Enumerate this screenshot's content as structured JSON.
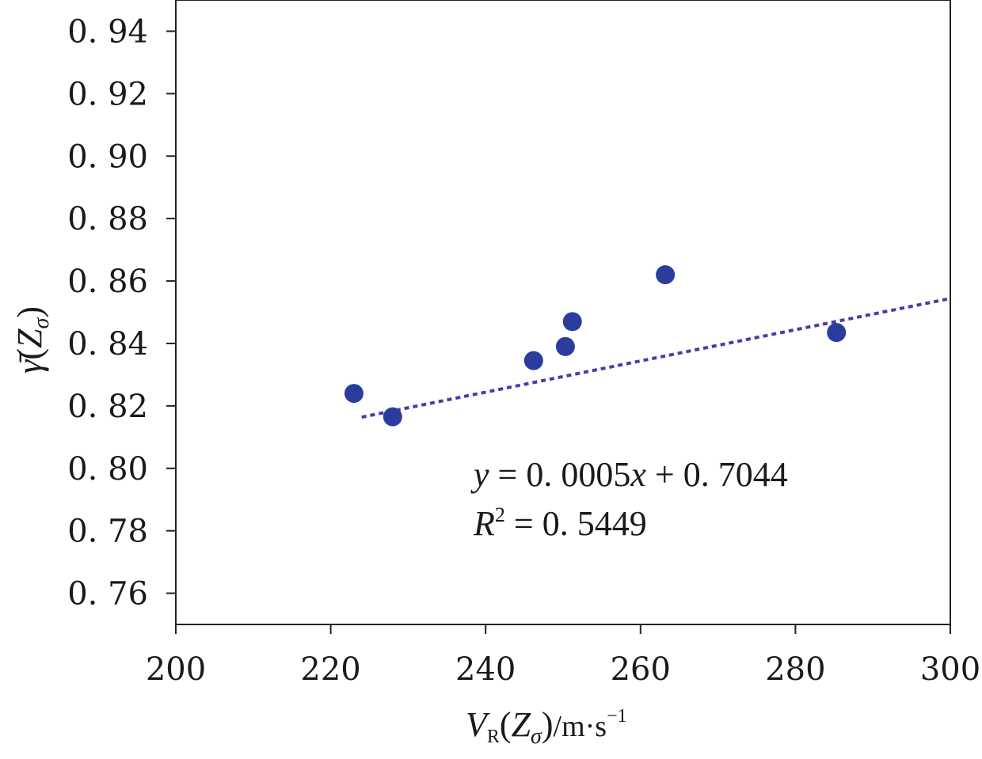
{
  "chart_data": {
    "type": "scatter",
    "x_label": {
      "main": "V",
      "sub": "R",
      "paren_open": "(",
      "var": "Z",
      "var_sub": "σ",
      "paren_close": ")",
      "unit": "/m·s",
      "unit_sup": "−1"
    },
    "y_label": {
      "main": "γ̄",
      "paren_open": "(",
      "var": "Z",
      "var_sub": "σ",
      "paren_close": ")"
    },
    "xlim": [
      200,
      300
    ],
    "ylim": [
      0.75,
      0.95
    ],
    "x_ticks": [
      200,
      220,
      240,
      260,
      280,
      300
    ],
    "x_tick_labels": [
      "200",
      "220",
      "240",
      "260",
      "280",
      "300"
    ],
    "y_ticks": [
      0.76,
      0.78,
      0.8,
      0.82,
      0.84,
      0.86,
      0.88,
      0.9,
      0.92,
      0.94
    ],
    "y_tick_labels": [
      "0. 76",
      "0. 78",
      "0. 80",
      "0. 82",
      "0. 84",
      "0. 86",
      "0. 88",
      "0. 90",
      "0. 92",
      "0. 94"
    ],
    "series": [
      {
        "points": [
          {
            "x": 223,
            "y": 0.824
          },
          {
            "x": 228,
            "y": 0.8165
          },
          {
            "x": 246.2,
            "y": 0.8345
          },
          {
            "x": 250.3,
            "y": 0.839
          },
          {
            "x": 251.2,
            "y": 0.847
          },
          {
            "x": 263.2,
            "y": 0.862
          },
          {
            "x": 285.3,
            "y": 0.8435
          }
        ]
      }
    ],
    "trendline": {
      "slope": 0.0005,
      "intercept": 0.7044,
      "x_start": 224,
      "x_end": 300,
      "style": "dotted"
    },
    "equation": {
      "y_var": "y",
      "eq_rest": " = 0. 0005",
      "x_var": "x",
      "eq_tail": " + 0. 7044",
      "r_var": "R",
      "r_sup": "2",
      "r_rest": " = 0. 5449"
    },
    "colors": {
      "points": "#2a3d9e",
      "trendline": "#4b3aa8",
      "axes": "#222222"
    },
    "grid": false
  }
}
